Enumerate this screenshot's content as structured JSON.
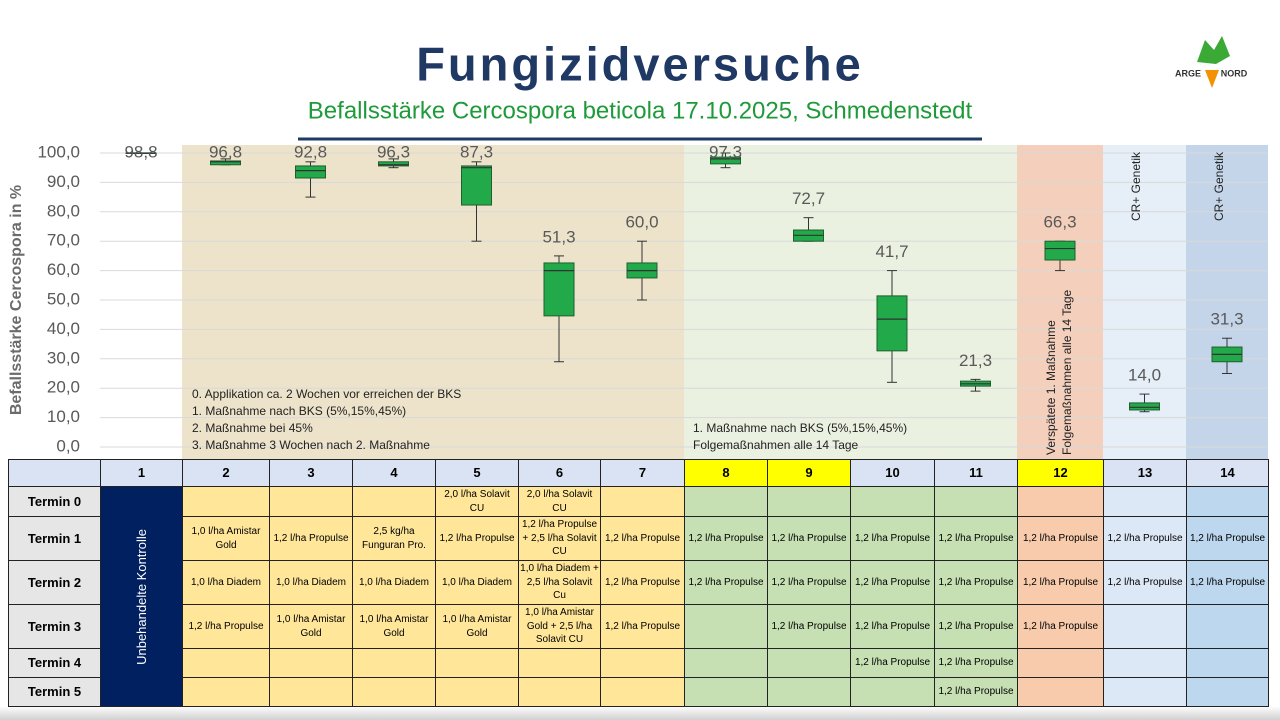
{
  "chart_data": {
    "type": "box",
    "title": "Fungizidversuche",
    "subtitle": "Befallsstärke Cercospora beticola 17.10.2025, Schmedenstedt",
    "y_label": "Befallsstärke Cercospora in %",
    "ylim": [
      0,
      100
    ],
    "yticks": [
      {
        "value": 0,
        "label": "0,0"
      },
      {
        "value": 10,
        "label": "10,0"
      },
      {
        "value": 20,
        "label": "20,0"
      },
      {
        "value": 30,
        "label": "30,0"
      },
      {
        "value": 40,
        "label": "40,0"
      },
      {
        "value": 50,
        "label": "50,0"
      },
      {
        "value": 60,
        "label": "60,0"
      },
      {
        "value": 70,
        "label": "70,0"
      },
      {
        "value": 80,
        "label": "80,0"
      },
      {
        "value": 90,
        "label": "90,0"
      },
      {
        "value": 100,
        "label": "100,0"
      }
    ],
    "grid": true,
    "color": "#22a94a",
    "categories": [
      "1",
      "2",
      "3",
      "4",
      "5",
      "6",
      "7",
      "8",
      "9",
      "10",
      "11",
      "12",
      "13",
      "14"
    ],
    "min": [
      100,
      96,
      85,
      95,
      70,
      29,
      50,
      95,
      70,
      22,
      19,
      60,
      12,
      25
    ],
    "q1": [
      100,
      96,
      91.5,
      95.6,
      82.3,
      44.6,
      57.5,
      96.3,
      70,
      32.7,
      20.7,
      63.6,
      12.6,
      29
    ],
    "median": [
      100,
      97,
      94,
      96,
      95,
      60,
      60,
      98,
      72,
      43.5,
      21.5,
      67.5,
      13.5,
      31.5
    ],
    "q3": [
      100,
      97.3,
      95.6,
      97,
      95.6,
      62.6,
      62.6,
      98.6,
      73.8,
      51.4,
      22.4,
      70,
      15,
      34
    ],
    "max": [
      100,
      98,
      97,
      98,
      97,
      65,
      70,
      100,
      78,
      60,
      23,
      70,
      18,
      37
    ],
    "values": [
      98.8,
      96.8,
      92.8,
      96.3,
      87.3,
      51.3,
      60,
      97.3,
      72.7,
      41.7,
      21.3,
      66.3,
      14,
      31.3
    ],
    "value_labels": [
      "98,8",
      "96,8",
      "92,8",
      "96,3",
      "87,3",
      "51,3",
      "60,0",
      "97,3",
      "72,7",
      "41,7",
      "21,3",
      "66,3",
      "14,0",
      "31,3"
    ],
    "notes_left": [
      "0. Applikation ca. 2 Wochen vor erreichen der BKS",
      "1. Maßnahme nach BKS (5%,15%,45%)",
      "2. Maßnahme bei 45%",
      "3. Maßnahme 3 Wochen nach 2. Maßnahme"
    ],
    "notes_right": [
      "1. Maßnahme nach BKS (5%,15%,45%)",
      "Folgemaßnahmen alle 14 Tage"
    ],
    "note_12": [
      "Verspätete 1. Maßnahme",
      "Folgemaßnahmen alle 14 Tage"
    ],
    "note_13": "CR+ Genetik",
    "note_14": "CR+ Genetik"
  },
  "logo": {
    "left": "ARGE",
    "right": "NORD"
  },
  "table": {
    "control_label": "Unbehandelte Kontrolle",
    "row_labels": [
      "Termin 0",
      "Termin 1",
      "Termin 2",
      "Termin 3",
      "Termin 4",
      "Termin 5"
    ],
    "rows": [
      [
        null,
        null,
        null,
        "2,0 l/ha Solavit CU",
        "2,0 l/ha Solavit CU",
        null,
        null,
        null,
        null,
        null,
        null,
        null,
        null
      ],
      [
        "1,0 l/ha Amistar Gold",
        "1,2 l/ha Propulse",
        "2,5 kg/ha Funguran Pro.",
        "1,2 l/ha Propulse",
        "1,2 l/ha Propulse + 2,5 l/ha Solavit CU",
        "1,2 l/ha Propulse",
        "1,2 l/ha Propulse",
        "1,2 l/ha Propulse",
        "1,2 l/ha Propulse",
        "1,2 l/ha Propulse",
        "1,2 l/ha Propulse",
        "1,2 l/ha Propulse",
        "1,2 l/ha Propulse"
      ],
      [
        "1,0 l/ha Diadem",
        "1,0 l/ha Diadem",
        "1,0 l/ha Diadem",
        "1,0 l/ha Diadem",
        "1,0 l/ha Diadem + 2,5 l/ha Solavit Cu",
        "1,2 l/ha Propulse",
        "1,2 l/ha Propulse",
        "1,2 l/ha Propulse",
        "1,2 l/ha Propulse",
        "1,2 l/ha Propulse",
        "1,2 l/ha Propulse",
        "1,2 l/ha Propulse",
        "1,2 l/ha Propulse"
      ],
      [
        "1,2 l/ha Propulse",
        "1,0 l/ha Amistar Gold",
        "1,0 l/ha Amistar Gold",
        "1,0 l/ha Amistar Gold",
        "1,0 l/ha Amistar Gold + 2,5 l/ha Solavit CU",
        "1,2 l/ha Propulse",
        null,
        "1,2 l/ha Propulse",
        "1,2 l/ha Propulse",
        "1,2 l/ha Propulse",
        "1,2 l/ha Propulse",
        null,
        null
      ],
      [
        null,
        null,
        null,
        null,
        null,
        null,
        null,
        null,
        "1,2 l/ha Propulse",
        "1,2 l/ha Propulse",
        null,
        null,
        null
      ],
      [
        null,
        null,
        null,
        null,
        null,
        null,
        null,
        null,
        null,
        "1,2 l/ha Propulse",
        null,
        null,
        null
      ]
    ]
  }
}
